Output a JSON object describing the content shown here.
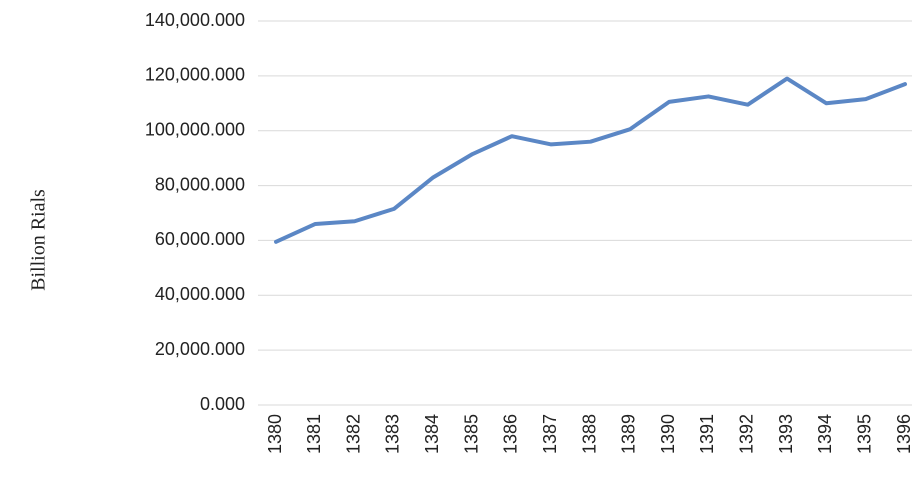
{
  "chart_data": {
    "type": "line",
    "y_label": "Billion Rials",
    "categories": [
      "1380",
      "1381",
      "1382",
      "1383",
      "1384",
      "1385",
      "1386",
      "1387",
      "1388",
      "1389",
      "1390",
      "1391",
      "1392",
      "1393",
      "1394",
      "1395",
      "1396"
    ],
    "series": [
      {
        "color": "#5b87c5",
        "values": [
          59500,
          66000,
          67000,
          71500,
          83000,
          91500,
          98000,
          95000,
          96000,
          100500,
          110500,
          112500,
          109500,
          119000,
          110000,
          111500,
          117000
        ]
      }
    ],
    "ylim": [
      0,
      140000
    ],
    "yticks": [
      {
        "value": 0,
        "label": "0.000"
      },
      {
        "value": 20000,
        "label": "20,000.000"
      },
      {
        "value": 40000,
        "label": "40,000.000"
      },
      {
        "value": 60000,
        "label": "60,000.000"
      },
      {
        "value": 80000,
        "label": "80,000.000"
      },
      {
        "value": 100000,
        "label": "100,000.000"
      },
      {
        "value": 120000,
        "label": "120,000.000"
      },
      {
        "value": 140000,
        "label": "140,000.000"
      }
    ],
    "grid": true
  }
}
